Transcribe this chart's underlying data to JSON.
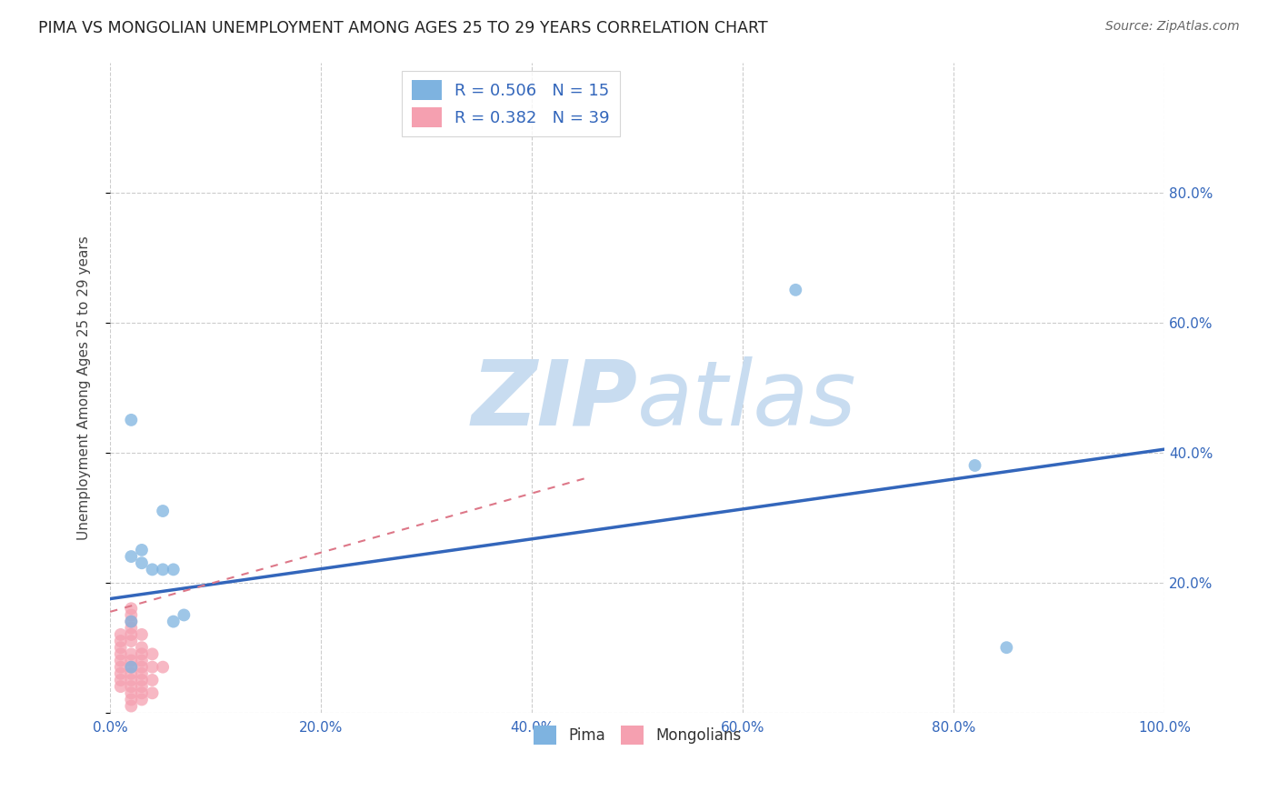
{
  "title": "PIMA VS MONGOLIAN UNEMPLOYMENT AMONG AGES 25 TO 29 YEARS CORRELATION CHART",
  "source": "Source: ZipAtlas.com",
  "ylabel": "Unemployment Among Ages 25 to 29 years",
  "xlim": [
    0,
    1.0
  ],
  "ylim": [
    0,
    1.0
  ],
  "xticks": [
    0.0,
    0.2,
    0.4,
    0.6,
    0.8,
    1.0
  ],
  "yticks": [
    0.0,
    0.2,
    0.4,
    0.6,
    0.8
  ],
  "xtick_labels": [
    "0.0%",
    "20.0%",
    "40.0%",
    "60.0%",
    "80.0%",
    "100.0%"
  ],
  "ytick_labels": [
    "",
    "20.0%",
    "40.0%",
    "60.0%",
    "80.0%"
  ],
  "background_color": "#ffffff",
  "pima_color": "#7eb3e0",
  "mongolian_color": "#f5a0b0",
  "pima_R": 0.506,
  "pima_N": 15,
  "mongolian_R": 0.382,
  "mongolian_N": 39,
  "pima_line_color": "#3366bb",
  "mongolian_line_color": "#dd7788",
  "grid_color": "#cccccc",
  "pima_points_x": [
    0.02,
    0.03,
    0.02,
    0.03,
    0.04,
    0.05,
    0.02,
    0.07,
    0.65,
    0.82,
    0.06,
    0.85,
    0.06,
    0.05,
    0.02
  ],
  "pima_points_y": [
    0.24,
    0.25,
    0.45,
    0.23,
    0.22,
    0.31,
    0.14,
    0.15,
    0.65,
    0.38,
    0.22,
    0.1,
    0.14,
    0.22,
    0.07
  ],
  "mongolian_points_x": [
    0.01,
    0.01,
    0.01,
    0.01,
    0.01,
    0.01,
    0.01,
    0.01,
    0.01,
    0.02,
    0.02,
    0.02,
    0.02,
    0.02,
    0.02,
    0.02,
    0.02,
    0.02,
    0.02,
    0.02,
    0.02,
    0.02,
    0.02,
    0.02,
    0.03,
    0.03,
    0.03,
    0.03,
    0.03,
    0.03,
    0.03,
    0.03,
    0.03,
    0.03,
    0.04,
    0.04,
    0.04,
    0.04,
    0.05
  ],
  "mongolian_points_y": [
    0.12,
    0.11,
    0.1,
    0.09,
    0.08,
    0.07,
    0.06,
    0.05,
    0.04,
    0.16,
    0.15,
    0.14,
    0.13,
    0.12,
    0.11,
    0.09,
    0.08,
    0.07,
    0.06,
    0.05,
    0.04,
    0.03,
    0.02,
    0.01,
    0.12,
    0.1,
    0.09,
    0.08,
    0.07,
    0.06,
    0.05,
    0.04,
    0.03,
    0.02,
    0.09,
    0.07,
    0.05,
    0.03,
    0.07
  ],
  "pima_line_x0": 0.0,
  "pima_line_y0": 0.175,
  "pima_line_x1": 1.0,
  "pima_line_y1": 0.405,
  "mongolian_line_x0": 0.0,
  "mongolian_line_y0": 0.155,
  "mongolian_line_x1": 0.45,
  "mongolian_line_y1": 0.36,
  "watermark_zip": "ZIP",
  "watermark_atlas": "atlas",
  "watermark_color": "#ddeeff",
  "marker_size": 100,
  "legend_pima_label": "Pima",
  "legend_mongolian_label": "Mongolians",
  "title_color": "#222222",
  "source_color": "#666666",
  "tick_color": "#3366bb",
  "ylabel_color": "#444444"
}
